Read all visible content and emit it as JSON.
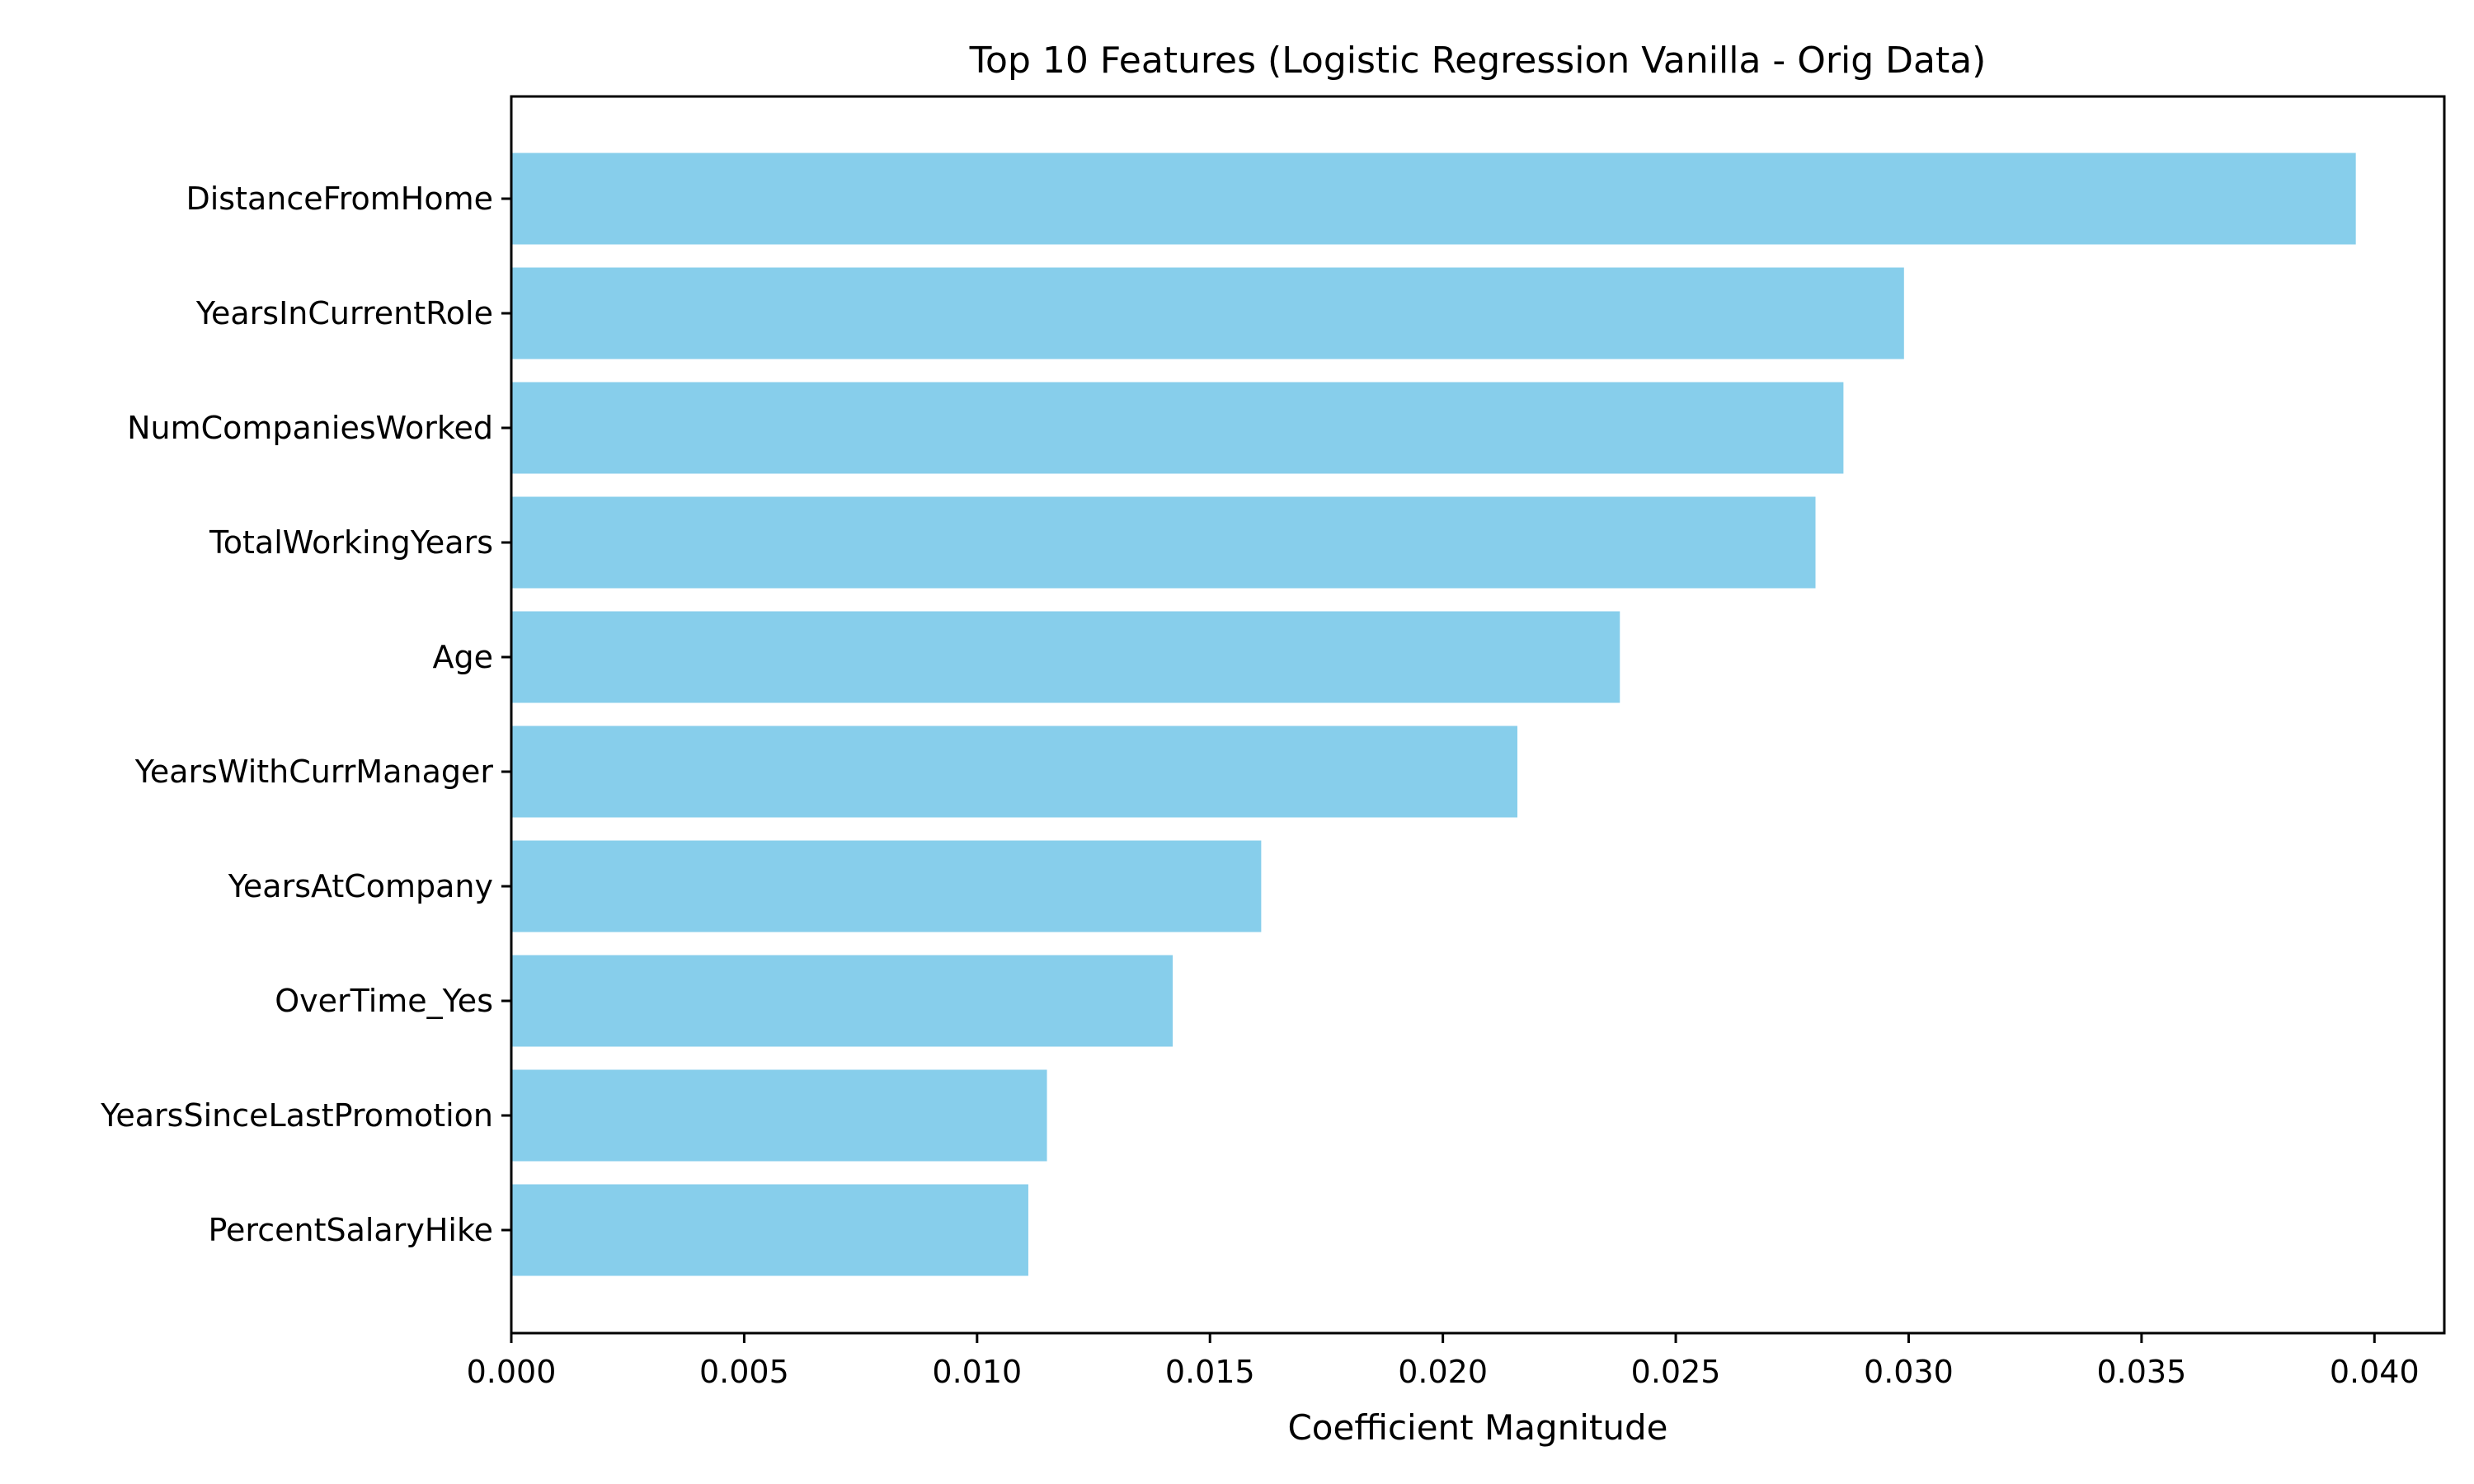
{
  "chart_data": {
    "type": "bar",
    "orientation": "horizontal",
    "title": "Top 10 Features (Logistic Regression Vanilla - Orig Data)",
    "xlabel": "Coefficient Magnitude",
    "ylabel": "",
    "categories": [
      "DistanceFromHome",
      "YearsInCurrentRole",
      "NumCompaniesWorked",
      "TotalWorkingYears",
      "Age",
      "YearsWithCurrManager",
      "YearsAtCompany",
      "OverTime_Yes",
      "YearsSinceLastPromotion",
      "PercentSalaryHike"
    ],
    "values": [
      0.0396,
      0.0299,
      0.0286,
      0.028,
      0.0238,
      0.0216,
      0.0161,
      0.0142,
      0.0115,
      0.0111
    ],
    "xlim": [
      0,
      0.0415
    ],
    "xticks": [
      0.0,
      0.005,
      0.01,
      0.015,
      0.02,
      0.025,
      0.03,
      0.035,
      0.04
    ],
    "xtick_labels": [
      "0.000",
      "0.005",
      "0.010",
      "0.015",
      "0.020",
      "0.025",
      "0.030",
      "0.035",
      "0.040"
    ],
    "bar_color": "#87CEEB",
    "grid": false,
    "legend": "none"
  }
}
